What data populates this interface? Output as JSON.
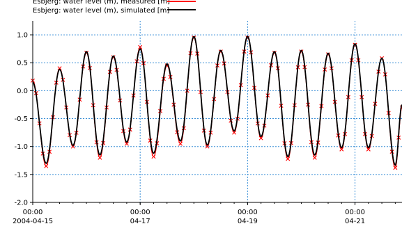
{
  "chart_data": {
    "type": "line",
    "title": "",
    "xlabel": "",
    "ylabel": "",
    "ylim": [
      -2.0,
      1.25
    ],
    "yticks": [
      1.0,
      0.5,
      0.0,
      -0.5,
      -1.0,
      -1.5,
      -2.0
    ],
    "ytick_labels": [
      "1.0",
      "0.5",
      "0.0",
      "-0.5",
      "-1.0",
      "-1.5",
      "-2.0"
    ],
    "xlim": [
      "2004-04-15 00:00",
      "2004-04-21 21:00"
    ],
    "xticks": [
      {
        "time": "00:00",
        "date": "2004-04-15"
      },
      {
        "time": "00:00",
        "date": "04-17"
      },
      {
        "time": "00:00",
        "date": "04-19"
      },
      {
        "time": "00:00",
        "date": "04-21"
      }
    ],
    "grid": true,
    "legend_position": "top-left",
    "series": [
      {
        "name": "Esbjerg: water level (m), measured [m]",
        "style": "line with x markers",
        "color": "#ff0000",
        "points": [
          [
            "2004-04-15 00:00",
            0.18
          ],
          [
            "2004-04-15 06:00",
            -1.35
          ],
          [
            "2004-04-15 12:00",
            0.4
          ],
          [
            "2004-04-15 18:00",
            -1.0
          ],
          [
            "2004-04-16 00:00",
            0.68
          ],
          [
            "2004-04-16 06:00",
            -1.2
          ],
          [
            "2004-04-16 12:00",
            0.6
          ],
          [
            "2004-04-16 18:00",
            -0.95
          ],
          [
            "2004-04-17 00:00",
            0.78
          ],
          [
            "2004-04-17 06:00",
            -1.18
          ],
          [
            "2004-04-17 12:00",
            0.45
          ],
          [
            "2004-04-17 18:00",
            -0.95
          ],
          [
            "2004-04-18 00:00",
            0.95
          ],
          [
            "2004-04-18 06:00",
            -1.0
          ],
          [
            "2004-04-18 12:00",
            0.7
          ],
          [
            "2004-04-18 18:00",
            -0.75
          ],
          [
            "2004-04-19 00:00",
            0.95
          ],
          [
            "2004-04-19 06:00",
            -0.85
          ],
          [
            "2004-04-19 12:00",
            0.68
          ],
          [
            "2004-04-19 18:00",
            -1.22
          ],
          [
            "2004-04-20 00:00",
            0.7
          ],
          [
            "2004-04-20 06:00",
            -1.2
          ],
          [
            "2004-04-20 12:00",
            0.65
          ],
          [
            "2004-04-20 18:00",
            -1.05
          ],
          [
            "2004-04-21 00:00",
            0.82
          ],
          [
            "2004-04-21 06:00",
            -1.05
          ],
          [
            "2004-04-21 12:00",
            0.58
          ],
          [
            "2004-04-21 18:00",
            -1.38
          ],
          [
            "2004-04-21 21:00",
            -0.3
          ]
        ]
      },
      {
        "name": "Esbjerg: water level (m), simulated  [m]",
        "style": "line",
        "color": "#000000",
        "points": [
          [
            "2004-04-15 00:00",
            0.15
          ],
          [
            "2004-04-15 06:00",
            -1.3
          ],
          [
            "2004-04-15 12:00",
            0.38
          ],
          [
            "2004-04-15 18:00",
            -0.98
          ],
          [
            "2004-04-16 00:00",
            0.7
          ],
          [
            "2004-04-16 06:00",
            -1.15
          ],
          [
            "2004-04-16 12:00",
            0.62
          ],
          [
            "2004-04-16 18:00",
            -0.92
          ],
          [
            "2004-04-17 00:00",
            0.75
          ],
          [
            "2004-04-17 06:00",
            -1.12
          ],
          [
            "2004-04-17 12:00",
            0.48
          ],
          [
            "2004-04-17 18:00",
            -0.9
          ],
          [
            "2004-04-18 00:00",
            0.97
          ],
          [
            "2004-04-18 06:00",
            -0.97
          ],
          [
            "2004-04-18 12:00",
            0.72
          ],
          [
            "2004-04-18 18:00",
            -0.72
          ],
          [
            "2004-04-19 00:00",
            0.97
          ],
          [
            "2004-04-19 06:00",
            -0.82
          ],
          [
            "2004-04-19 12:00",
            0.7
          ],
          [
            "2004-04-19 18:00",
            -1.18
          ],
          [
            "2004-04-20 00:00",
            0.72
          ],
          [
            "2004-04-20 06:00",
            -1.15
          ],
          [
            "2004-04-20 12:00",
            0.67
          ],
          [
            "2004-04-20 18:00",
            -1.02
          ],
          [
            "2004-04-21 00:00",
            0.84
          ],
          [
            "2004-04-21 06:00",
            -1.02
          ],
          [
            "2004-04-21 12:00",
            0.58
          ],
          [
            "2004-04-21 18:00",
            -1.33
          ],
          [
            "2004-04-21 21:00",
            -0.25
          ]
        ]
      }
    ]
  }
}
